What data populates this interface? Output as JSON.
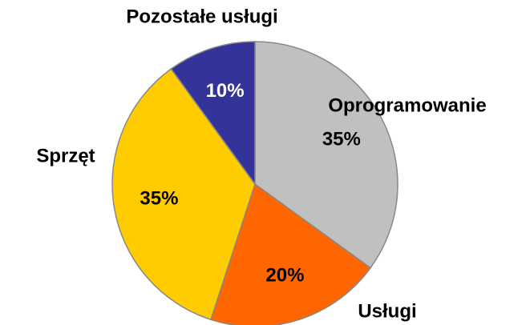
{
  "chart_data": {
    "type": "pie",
    "categories": [
      "Oprogramowanie",
      "Usługi",
      "Sprzęt",
      "Pozostałe usługi"
    ],
    "values": [
      35,
      20,
      35,
      10
    ],
    "value_labels": [
      "35%",
      "20%",
      "35%",
      "10%"
    ],
    "colors": [
      "#c0c0c0",
      "#ff6600",
      "#ffcc00",
      "#333399"
    ]
  }
}
